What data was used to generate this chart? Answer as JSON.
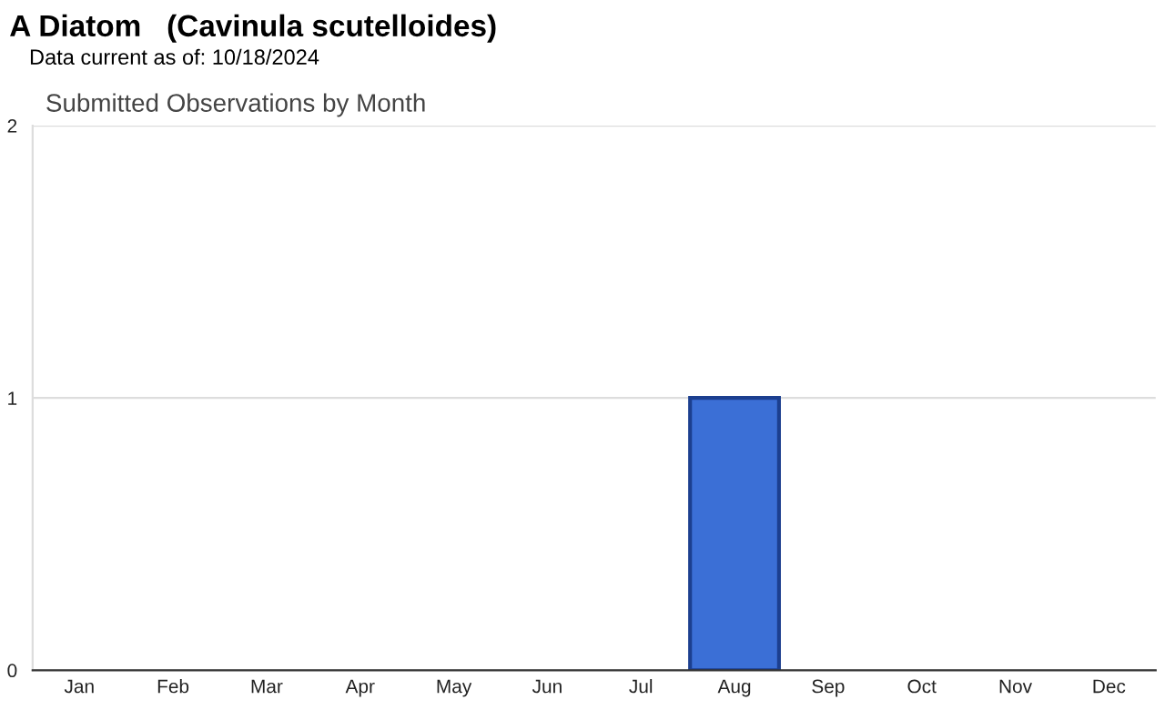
{
  "chart_data": {
    "type": "bar",
    "title": "A Diatom   (Cavinula scutelloides)",
    "subtitle": "Data current as of: 10/18/2024",
    "annotations": [
      "Submitted Observations by Month"
    ],
    "categories": [
      "Jan",
      "Feb",
      "Mar",
      "Apr",
      "May",
      "Jun",
      "Jul",
      "Aug",
      "Sep",
      "Oct",
      "Nov",
      "Dec"
    ],
    "values": [
      0,
      0,
      0,
      0,
      0,
      0,
      0,
      1,
      0,
      0,
      0,
      0
    ],
    "color": "#3b6fd6",
    "ylim": [
      0,
      2
    ],
    "yticks": [
      0,
      1,
      2
    ],
    "grid": "y"
  }
}
